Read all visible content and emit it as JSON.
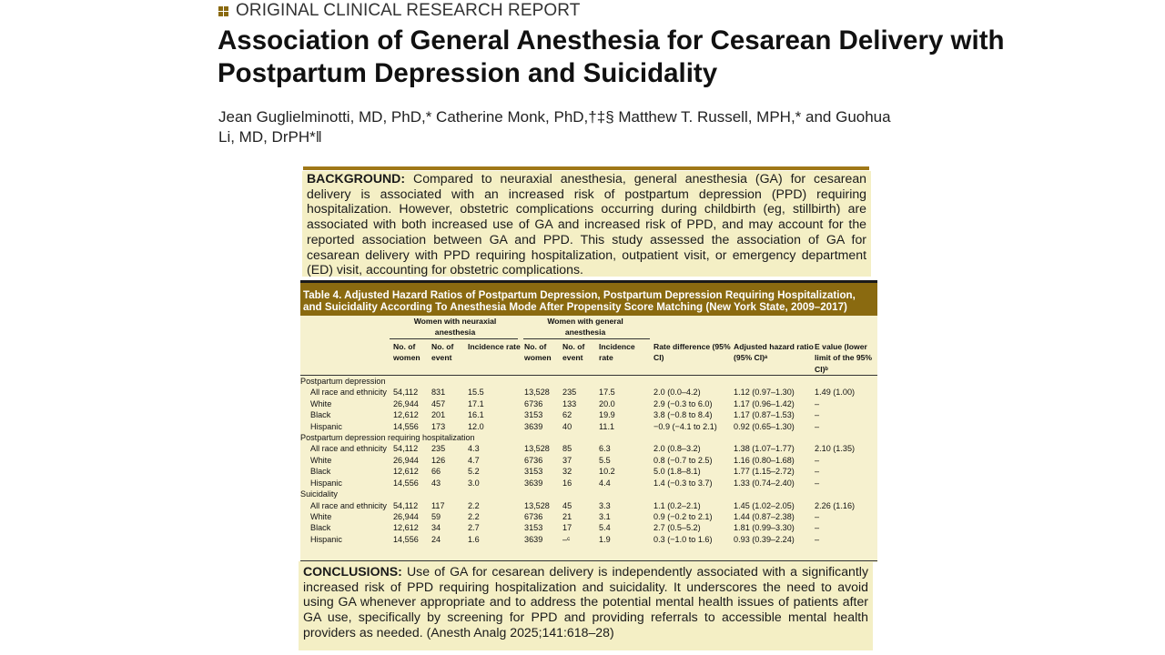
{
  "header": {
    "section_label": "ORIGINAL CLINICAL RESEARCH REPORT",
    "icon": "square-grid-icon",
    "accent_color": "#8a6a10"
  },
  "title": "Association of General Anesthesia for Cesarean Delivery with Postpartum Depression and Suicidality",
  "authors": {
    "text": "Jean Guglielminotti, MD, PhD,* Catherine Monk, PhD,†‡§ Matthew T. Russell, MPH,* and Guohua Li, MD, DrPH*",
    "end_mark": "‖"
  },
  "background": {
    "label": "BACKGROUND:",
    "text": "Compared to neuraxial anesthesia, general anesthesia (GA) for cesarean delivery is associated with an increased risk of postpartum depression (PPD) requiring hospitalization. However, obstetric complications occurring during childbirth (eg, stillbirth) are associated with both increased use of GA and increased risk of PPD, and may account for the reported association between GA and PPD. This study assessed the association of GA for cesarean delivery with PPD requiring hospitalization, outpatient visit, or emergency department (ED) visit, accounting for obstetric complications."
  },
  "table": {
    "title": "Table 4.  Adjusted Hazard Ratios of Postpartum Depression, Postpartum Depression Requiring Hospitalization, and Suicidality According To Anesthesia Mode After Propensity Score Matching (New York State, 2009–2017)",
    "group_neuraxial": "Women with neuraxial anesthesia",
    "group_general": "Women with general anesthesia",
    "col_women": "No. of women",
    "col_event": "No. of event",
    "col_rate": "Incidence rate",
    "col_rd": "Rate difference (95% CI)",
    "col_hr": "Adjusted hazard ratio (95% CI)ᵃ",
    "col_e": "E value (lower limit of the 95% CI)ᵇ",
    "sections": [
      {
        "name": "Postpartum depression",
        "rows": [
          [
            "All race and ethnicity",
            "54,112",
            "831",
            "15.5",
            "13,528",
            "235",
            "17.5",
            "2.0 (0.0–4.2)",
            "1.12 (0.97–1.30)",
            "1.49 (1.00)"
          ],
          [
            "White",
            "26,944",
            "457",
            "17.1",
            "6736",
            "133",
            "20.0",
            "2.9 (−0.3 to 6.0)",
            "1.17 (0.96–1.42)",
            "–"
          ],
          [
            "Black",
            "12,612",
            "201",
            "16.1",
            "3153",
            "62",
            "19.9",
            "3.8 (−0.8 to 8.4)",
            "1.17 (0.87–1.53)",
            "–"
          ],
          [
            "Hispanic",
            "14,556",
            "173",
            "12.0",
            "3639",
            "40",
            "11.1",
            "−0.9 (−4.1 to 2.1)",
            "0.92 (0.65–1.30)",
            "–"
          ]
        ]
      },
      {
        "name": "Postpartum depression requiring hospitalization",
        "rows": [
          [
            "All race and ethnicity",
            "54,112",
            "235",
            "4.3",
            "13,528",
            "85",
            "6.3",
            "2.0 (0.8–3.2)",
            "1.38 (1.07–1.77)",
            "2.10 (1.35)"
          ],
          [
            "White",
            "26,944",
            "126",
            "4.7",
            "6736",
            "37",
            "5.5",
            "0.8 (−0.7 to 2.5)",
            "1.16 (0.80–1.68)",
            "–"
          ],
          [
            "Black",
            "12,612",
            "66",
            "5.2",
            "3153",
            "32",
            "10.2",
            "5.0 (1.8–8.1)",
            "1.77 (1.15–2.72)",
            "–"
          ],
          [
            "Hispanic",
            "14,556",
            "43",
            "3.0",
            "3639",
            "16",
            "4.4",
            "1.4 (−0.3 to 3.7)",
            "1.33 (0.74–2.40)",
            "–"
          ]
        ]
      },
      {
        "name": "Suicidality",
        "rows": [
          [
            "All race and ethnicity",
            "54,112",
            "117",
            "2.2",
            "13,528",
            "45",
            "3.3",
            "1.1 (0.2–2.1)",
            "1.45 (1.02–2.05)",
            "2.26 (1.16)"
          ],
          [
            "White",
            "26,944",
            "59",
            "2.2",
            "6736",
            "21",
            "3.1",
            "0.9 (−0.2 to 2.1)",
            "1.44 (0.87–2.38)",
            "–"
          ],
          [
            "Black",
            "12,612",
            "34",
            "2.7",
            "3153",
            "17",
            "5.4",
            "2.7 (0.5–5.2)",
            "1.81 (0.99–3.30)",
            "–"
          ],
          [
            "Hispanic",
            "14,556",
            "24",
            "1.6",
            "3639",
            "–ᶜ",
            "1.9",
            "0.3 (−1.0 to 1.6)",
            "0.93 (0.39–2.24)",
            "–"
          ]
        ]
      }
    ]
  },
  "conclusions": {
    "label": "CONCLUSIONS:",
    "text": "Use of GA for cesarean delivery is independently associated with a significantly increased risk of PPD requiring hospitalization and suicidality. It underscores the need to avoid using GA whenever appropriate and to address the potential mental health issues of patients after GA use, specifically by screening for PPD and providing referrals to accessible mental health providers as needed.",
    "citation": "(Anesth Analg 2025;141:618–28)"
  }
}
